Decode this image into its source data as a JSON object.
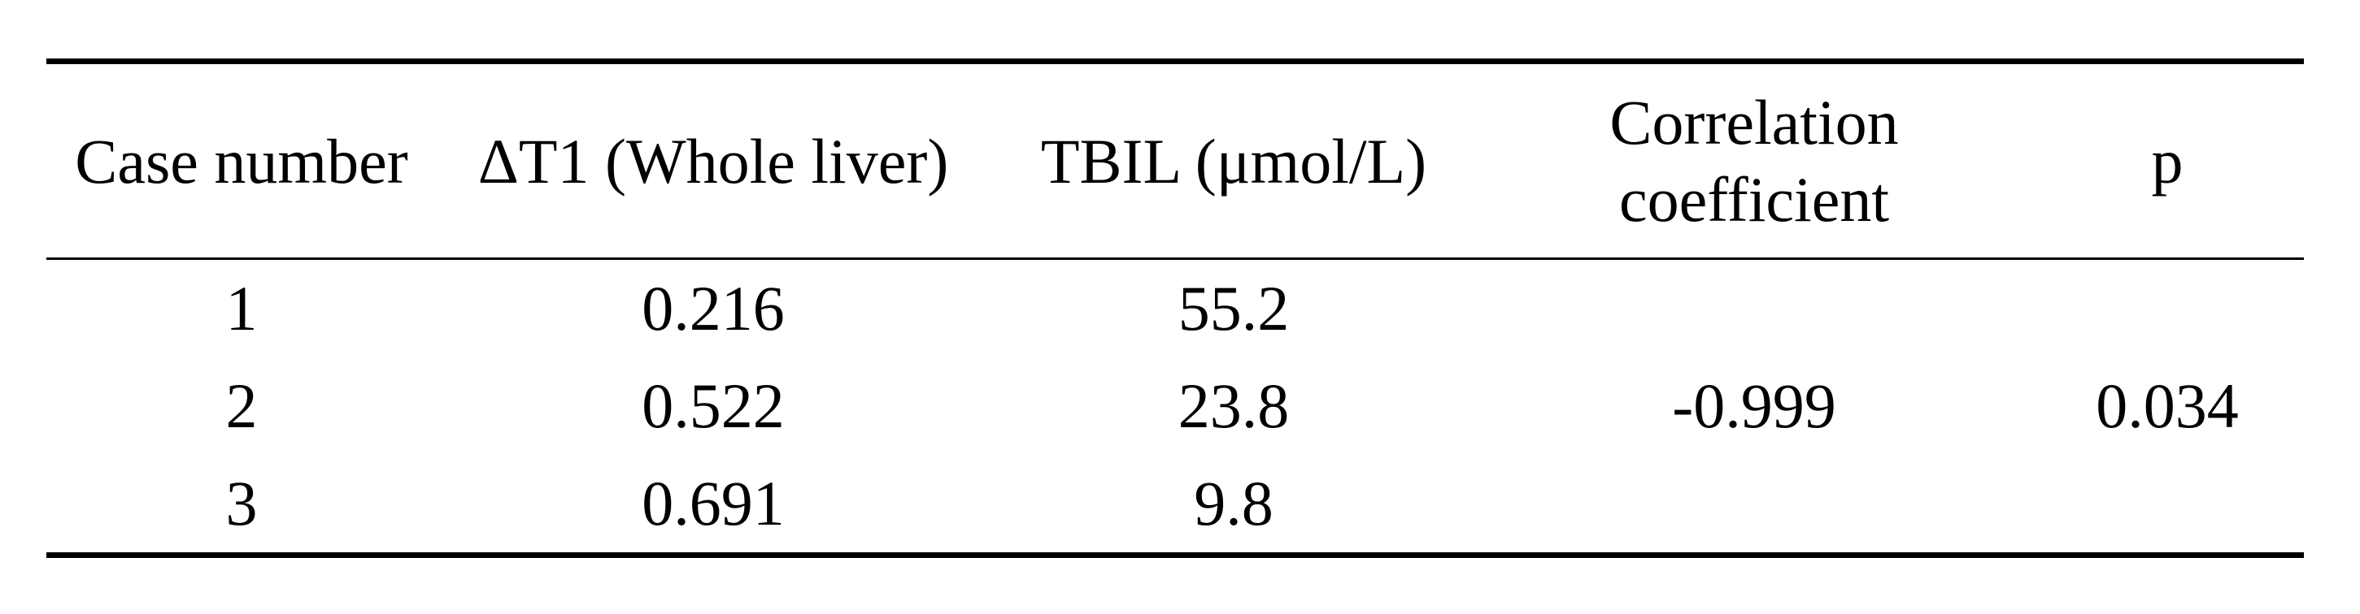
{
  "document": {
    "kind": "academic-paper-table",
    "background_color": "#ffffff",
    "text_color": "#000000",
    "rule_color": "#000000"
  },
  "table": {
    "columns": [
      {
        "label": "Case number"
      },
      {
        "label": "ΔT1 (Whole liver)"
      },
      {
        "label": "TBIL (μmol/L)"
      },
      {
        "label": "Correlation coefficient"
      },
      {
        "label": "p"
      }
    ],
    "rows": [
      {
        "case_number": "1",
        "delta_t1": "0.216",
        "tbil": "55.2",
        "correlation_coefficient": "",
        "p_value": ""
      },
      {
        "case_number": "2",
        "delta_t1": "0.522",
        "tbil": "23.8",
        "correlation_coefficient": "-0.999",
        "p_value": "0.034"
      },
      {
        "case_number": "3",
        "delta_t1": "0.691",
        "tbil": "9.8",
        "correlation_coefficient": "",
        "p_value": ""
      }
    ]
  }
}
